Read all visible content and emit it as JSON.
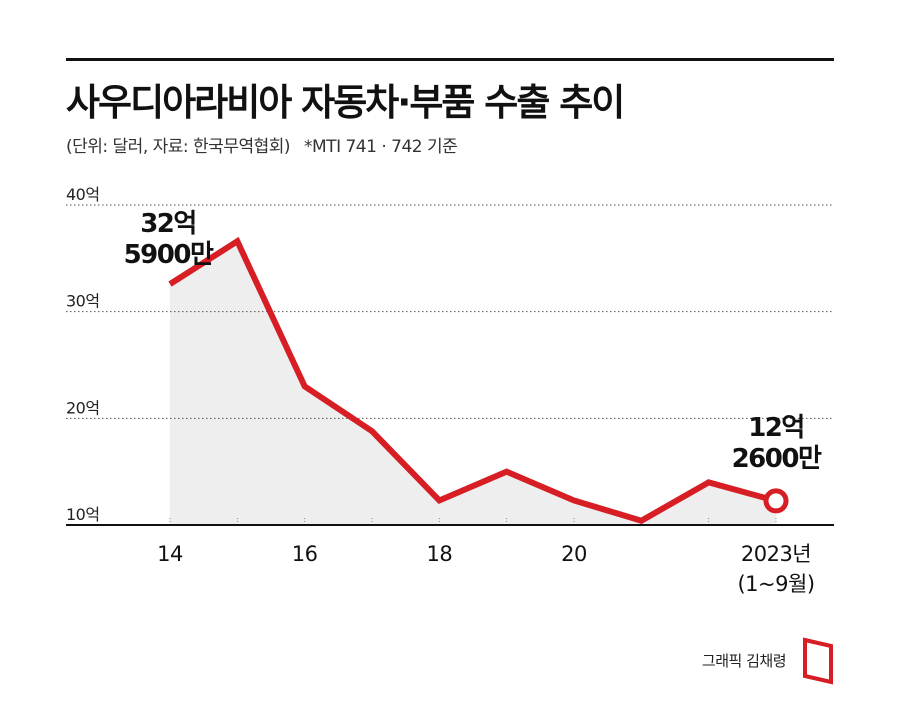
{
  "header": {
    "title": "사우디아라비아 자동차·부품 수출 추이",
    "subtitle": "(단위: 달러, 자료: 한국무역협회)",
    "note": "*MTI 741 · 742 기준"
  },
  "credit": "그래픽 김채령",
  "colors": {
    "line": "#d61e24",
    "area": "#eeeeee",
    "axis": "#111111",
    "grid": "#555555"
  },
  "chart_data": {
    "type": "area",
    "x": [
      2014,
      2015,
      2016,
      2017,
      2018,
      2019,
      2020,
      2021,
      2022,
      2023
    ],
    "series": [
      {
        "values": [
          32.59,
          36.6,
          23.0,
          18.8,
          12.3,
          15.0,
          12.3,
          10.4,
          14.0,
          12.26
        ]
      }
    ],
    "xticks": [
      2014,
      2016,
      2018,
      2020,
      2023
    ],
    "xtick_labels": [
      "14",
      "16",
      "18",
      "20",
      "2023년"
    ],
    "xtick_sublabel": "(1~9월)",
    "yticks": [
      10,
      20,
      30,
      40
    ],
    "ytick_labels": [
      "10억",
      "20억",
      "30억",
      "40억"
    ],
    "ylim": [
      10,
      40
    ],
    "grid": "dotted horizontal",
    "annotations": [
      {
        "x": 2014,
        "lines": [
          "32억",
          "5900만"
        ]
      },
      {
        "x": 2023,
        "lines": [
          "12억",
          "2600만"
        ]
      }
    ]
  }
}
